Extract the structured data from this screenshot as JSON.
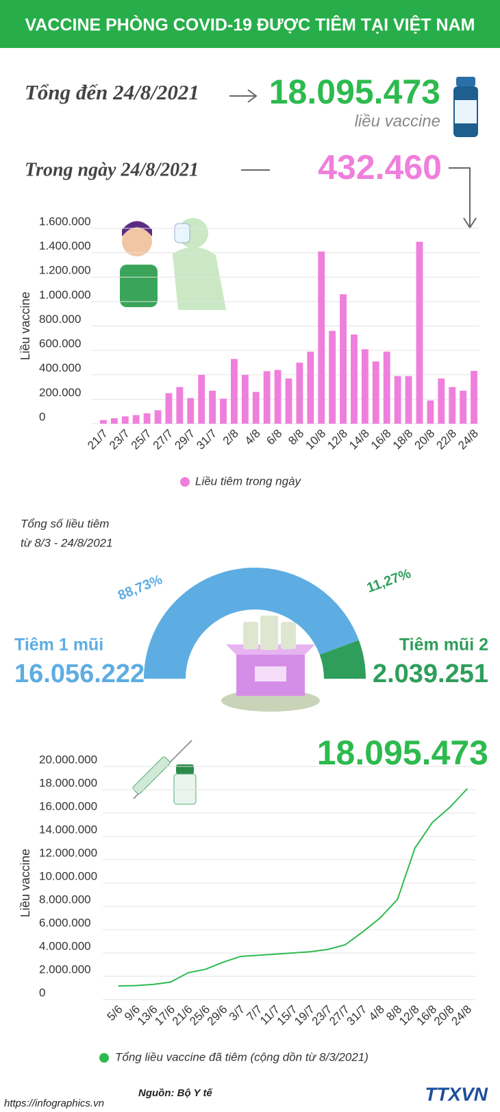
{
  "header": {
    "title": "VACCINE PHÒNG COVID-19 ĐƯỢC TIÊM TẠI VIỆT NAM"
  },
  "summary": {
    "total_label": "Tổng đến 24/8/2021",
    "total": "18.095.473",
    "total_unit": "liều vaccine",
    "daily_label": "Trong ngày 24/8/2021",
    "daily": "432.460"
  },
  "chart_data": [
    {
      "type": "bar",
      "y_label": "Liều vaccine",
      "categories": [
        "21/7",
        null,
        "23/7",
        null,
        "25/7",
        null,
        "27/7",
        null,
        "29/7",
        null,
        "31/7",
        null,
        "2/8",
        null,
        "4/8",
        null,
        "6/8",
        null,
        "8/8",
        null,
        "10/8",
        null,
        "12/8",
        null,
        "14/8",
        null,
        "16/8",
        null,
        "18/8",
        null,
        "20/8",
        null,
        "22/8",
        null,
        "24/8"
      ],
      "series": [
        {
          "name": "Liều tiêm trong ngày",
          "color": "#ef7fdc",
          "values": [
            30000,
            45000,
            60000,
            70000,
            85000,
            110000,
            250000,
            300000,
            210000,
            400000,
            270000,
            205000,
            530000,
            400000,
            260000,
            430000,
            440000,
            370000,
            500000,
            590000,
            1410000,
            760000,
            1060000,
            730000,
            610000,
            510000,
            590000,
            390000,
            390000,
            1490000,
            190000,
            370000,
            300000,
            270000,
            432460
          ]
        }
      ],
      "ylim": [
        0,
        1600000
      ],
      "yticks": [
        0,
        {
          "value": 200000,
          "label": "200.000"
        },
        {
          "value": 400000,
          "label": "400.000"
        },
        {
          "value": 600000,
          "label": "600.000"
        },
        {
          "value": 800000,
          "label": "800.000"
        },
        {
          "value": 1000000,
          "label": "1.000.000"
        },
        {
          "value": 1200000,
          "label": "1.200.000"
        },
        {
          "value": 1400000,
          "label": "1.400.000"
        },
        {
          "value": 1600000,
          "label": "1.600.000"
        }
      ],
      "grid": true
    },
    {
      "type": "pie",
      "title": "Tổng số liều tiêm",
      "subtitle": "từ 8/3 - 24/8/2021",
      "categories": [
        "Tiêm 1 mũi",
        "Tiêm mũi 2"
      ],
      "values": [
        88.73,
        11.27
      ],
      "value_labels": [
        "88,73%",
        "11,27%"
      ],
      "colors": [
        "#5dade2",
        "#2e9e5a"
      ],
      "dose_counts": [
        "16.056.222",
        "2.039.251"
      ]
    },
    {
      "type": "line",
      "y_label": "Liều vaccine",
      "annotation": "18.095.473",
      "categories": [
        "5/6",
        "9/6",
        "13/6",
        "17/6",
        "21/6",
        "25/6",
        "29/6",
        "3/7",
        "7/7",
        "11/7",
        "15/7",
        "19/7",
        "23/7",
        "27/7",
        "31/7",
        "4/8",
        "8/8",
        "12/8",
        "16/8",
        "20/8",
        "24/8"
      ],
      "series": [
        {
          "name": "Tổng liều vaccine đã tiêm (cộng dồn từ 8/3/2021)",
          "color": "#2dba4e",
          "values": [
            1170000,
            1200000,
            1300000,
            1500000,
            2300000,
            2600000,
            3200000,
            3700000,
            3800000,
            3900000,
            4000000,
            4100000,
            4300000,
            4700000,
            5800000,
            7000000,
            8600000,
            13000000,
            15200000,
            16500000,
            18095473
          ]
        }
      ],
      "ylim": [
        0,
        20000000
      ],
      "yticks": [
        0,
        {
          "value": 2000000,
          "label": "2.000.000"
        },
        {
          "value": 4000000,
          "label": "4.000.000"
        },
        {
          "value": 6000000,
          "label": "6.000.000"
        },
        {
          "value": 8000000,
          "label": "8.000.000"
        },
        {
          "value": 10000000,
          "label": "10.000.000"
        },
        {
          "value": 12000000,
          "label": "12.000.000"
        },
        {
          "value": 14000000,
          "label": "14.000.000"
        },
        {
          "value": 16000000,
          "label": "16.000.000"
        },
        {
          "value": 18000000,
          "label": "18.000.000"
        },
        {
          "value": 20000000,
          "label": "20.000.000"
        }
      ],
      "grid": true
    }
  ],
  "footer": {
    "source": "Nguồn: Bộ Y tế",
    "url": "https://infographics.vn",
    "logo": "TTXVN"
  }
}
